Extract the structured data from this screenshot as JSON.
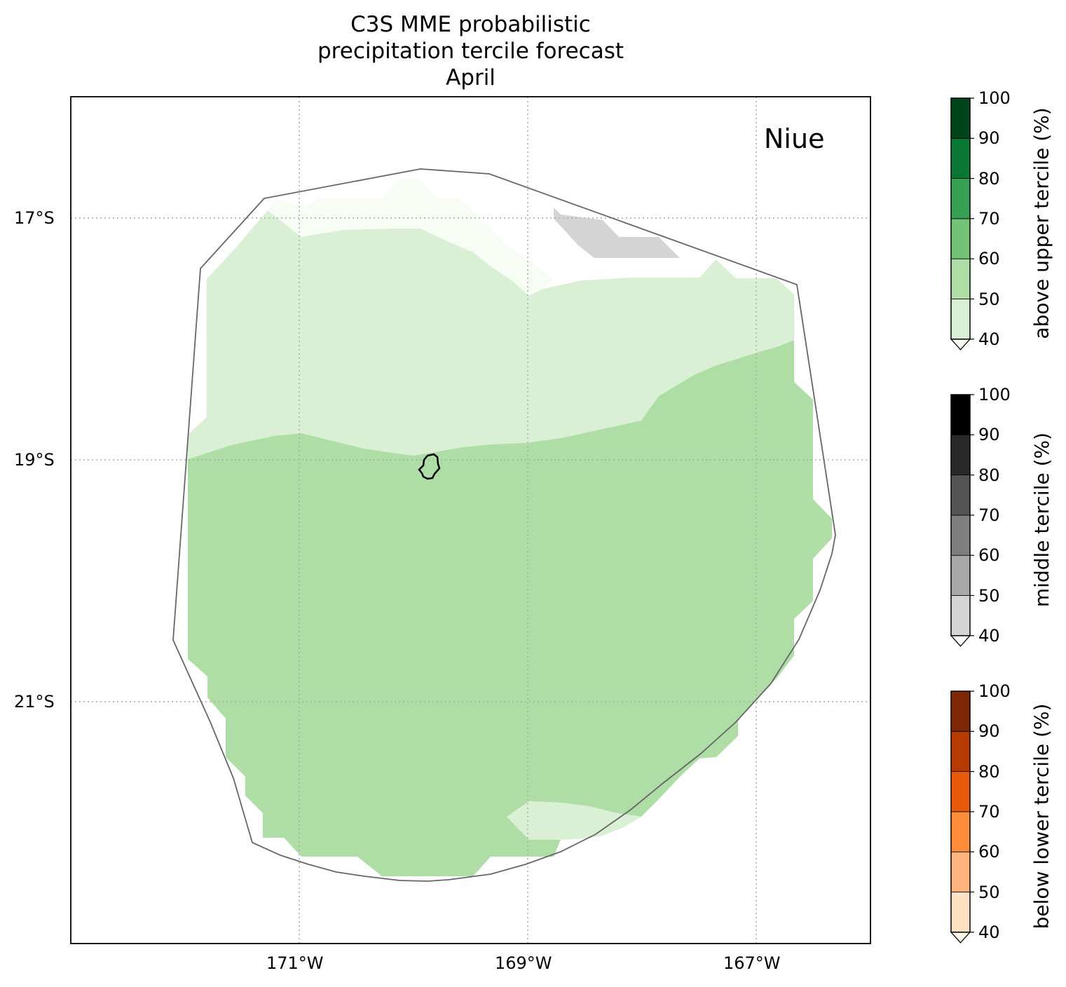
{
  "title": {
    "lines": [
      "C3S MME probabilistic",
      "precipitation tercile forecast",
      "April"
    ]
  },
  "map": {
    "country_label": "Niue",
    "lon_ticks": [
      "171°W",
      "169°W",
      "167°W"
    ],
    "lat_ticks": [
      "17°S",
      "19°S",
      "21°S"
    ],
    "lon_range": [
      -173,
      -166
    ],
    "lat_range": [
      -16,
      -23
    ],
    "boundary_color": "#666666",
    "island_color": "#000000",
    "grid": "dotted"
  },
  "regions": [
    {
      "name": "above-upper-40-50",
      "category": "above upper tercile",
      "bin": "40-50",
      "color": "#f7fcf5"
    },
    {
      "name": "above-upper-40-50-main",
      "category": "above upper tercile",
      "bin": "40-50",
      "color": "#daf0d5"
    },
    {
      "name": "above-upper-50-60",
      "category": "above upper tercile",
      "bin": "50-60",
      "color": "#aedea6"
    },
    {
      "name": "above-upper-40-50-south",
      "category": "above upper tercile",
      "bin": "40-50",
      "color": "#daf0d5"
    },
    {
      "name": "middle-40-50",
      "category": "middle tercile",
      "bin": "40-50",
      "color": "#d4d4d4"
    }
  ],
  "colorbars": [
    {
      "label": "above upper tercile (%)",
      "ticks": [
        "40",
        "50",
        "60",
        "70",
        "80",
        "90",
        "100"
      ],
      "colors": [
        "#daf0d5",
        "#aedea6",
        "#72c375",
        "#37a055",
        "#0b7734",
        "#00441b"
      ],
      "extend_color": "#f7fcf5"
    },
    {
      "label": "middle tercile (%)",
      "ticks": [
        "40",
        "50",
        "60",
        "70",
        "80",
        "90",
        "100"
      ],
      "colors": [
        "#d4d4d4",
        "#a9a9a9",
        "#7f7f7f",
        "#545454",
        "#292929",
        "#000000"
      ],
      "extend_color": "#ffffff"
    },
    {
      "label": "below lower tercile (%)",
      "ticks": [
        "40",
        "50",
        "60",
        "70",
        "80",
        "90",
        "100"
      ],
      "colors": [
        "#fee0c3",
        "#fdb57d",
        "#fd8c3b",
        "#e75a0c",
        "#b53b03",
        "#7f2704"
      ],
      "extend_color": "#fff5eb"
    }
  ]
}
